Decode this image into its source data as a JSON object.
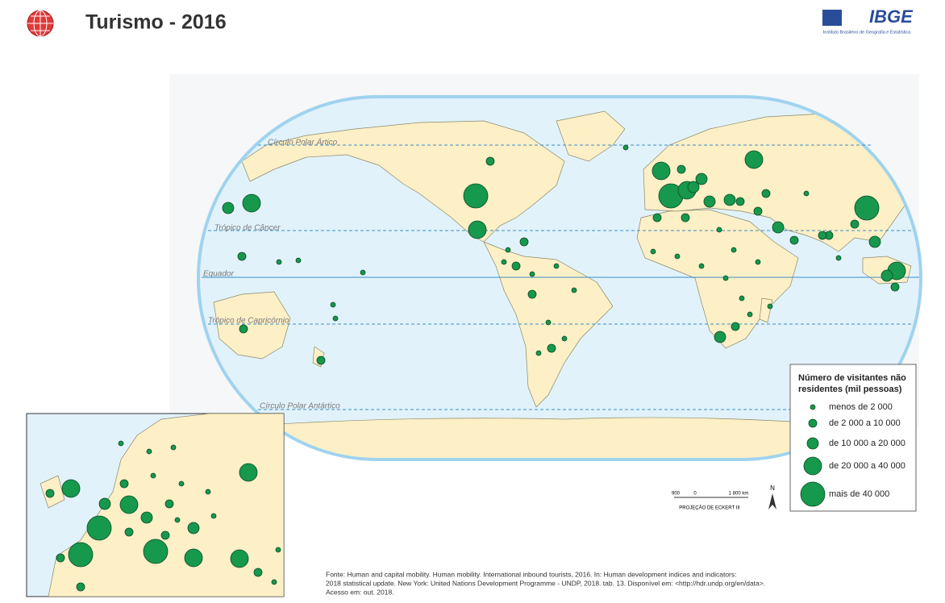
{
  "header": {
    "title": "Turismo - 2016",
    "logo": "IBGE",
    "logo_subtitle": "Instituto Brasileiro de Geografia e Estatística"
  },
  "map": {
    "parallels": [
      "Círculo Polar Ártico",
      "Trópico de Câncer",
      "Equador",
      "Trópico de Capricórnio",
      "Círculo Polar Antártico"
    ]
  },
  "legend": {
    "title_lines": [
      "Número de visitantes não",
      "residentes (mil pessoas)"
    ],
    "items": [
      "menos de 2 000",
      "de 2 000 a 10 000",
      "de 10 000 a 20 000",
      "de 20 000 a 40 000",
      "mais de 40 000"
    ]
  },
  "scale": {
    "labels": [
      "900",
      "0",
      "1 800 km"
    ],
    "projection": "PROJEÇÃO DE ECKERT III",
    "north": "N"
  },
  "source": [
    "Fonte: Human and capital mobility. Human mobility. International inbound tourists, 2016. In: Human development indices and indicators:",
    "2018 statistical update. New York: United Nations Development Programme - UNDP, 2018. tab. 13. Disponível em: <http://hdr.undp.org/en/data>.",
    "Acesso em: out. 2018."
  ]
}
